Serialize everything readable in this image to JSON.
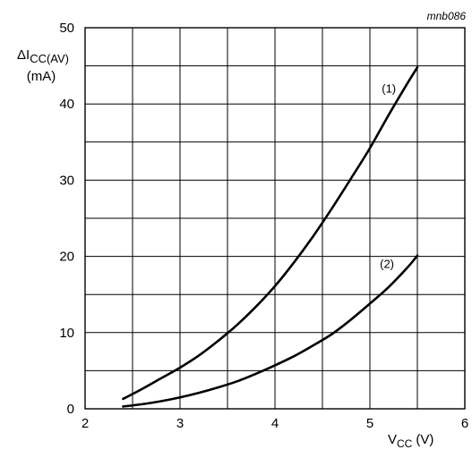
{
  "chart_data": {
    "type": "line",
    "code": "mnb086",
    "ylabel": {
      "main": "ΔI",
      "sub": "CC(AV)",
      "unit": "(mA)"
    },
    "xlabel": {
      "main": "V",
      "sub": "CC",
      "unit": "(V)"
    },
    "xlim": [
      2,
      6
    ],
    "ylim": [
      0,
      50
    ],
    "x_ticks": [
      2,
      3,
      4,
      5,
      6
    ],
    "y_ticks": [
      0,
      10,
      20,
      30,
      40,
      50
    ],
    "x_grid_step": 0.5,
    "y_grid_step": 5,
    "grid": true,
    "series": [
      {
        "name": "(1)",
        "color": "#000000",
        "x": [
          2.4,
          2.6,
          2.8,
          3.0,
          3.2,
          3.4,
          3.6,
          3.8,
          4.0,
          4.2,
          4.4,
          4.6,
          4.8,
          5.0,
          5.2,
          5.4,
          5.5
        ],
        "y": [
          1.3,
          2.6,
          4.0,
          5.4,
          7.0,
          8.9,
          11.0,
          13.4,
          16.1,
          19.2,
          22.6,
          26.3,
          30.2,
          34.2,
          38.6,
          42.8,
          44.8
        ]
      },
      {
        "name": "(2)",
        "color": "#000000",
        "x": [
          2.4,
          2.6,
          2.8,
          3.0,
          3.2,
          3.4,
          3.6,
          3.8,
          4.0,
          4.2,
          4.4,
          4.6,
          4.8,
          5.0,
          5.2,
          5.4,
          5.5
        ],
        "y": [
          0.3,
          0.6,
          1.0,
          1.5,
          2.1,
          2.8,
          3.6,
          4.6,
          5.7,
          6.9,
          8.3,
          9.8,
          11.7,
          13.8,
          16.0,
          18.6,
          20.1
        ]
      }
    ],
    "series_label_positions": [
      {
        "x": 5.2,
        "y": 41.5
      },
      {
        "x": 5.18,
        "y": 18.5
      }
    ]
  }
}
